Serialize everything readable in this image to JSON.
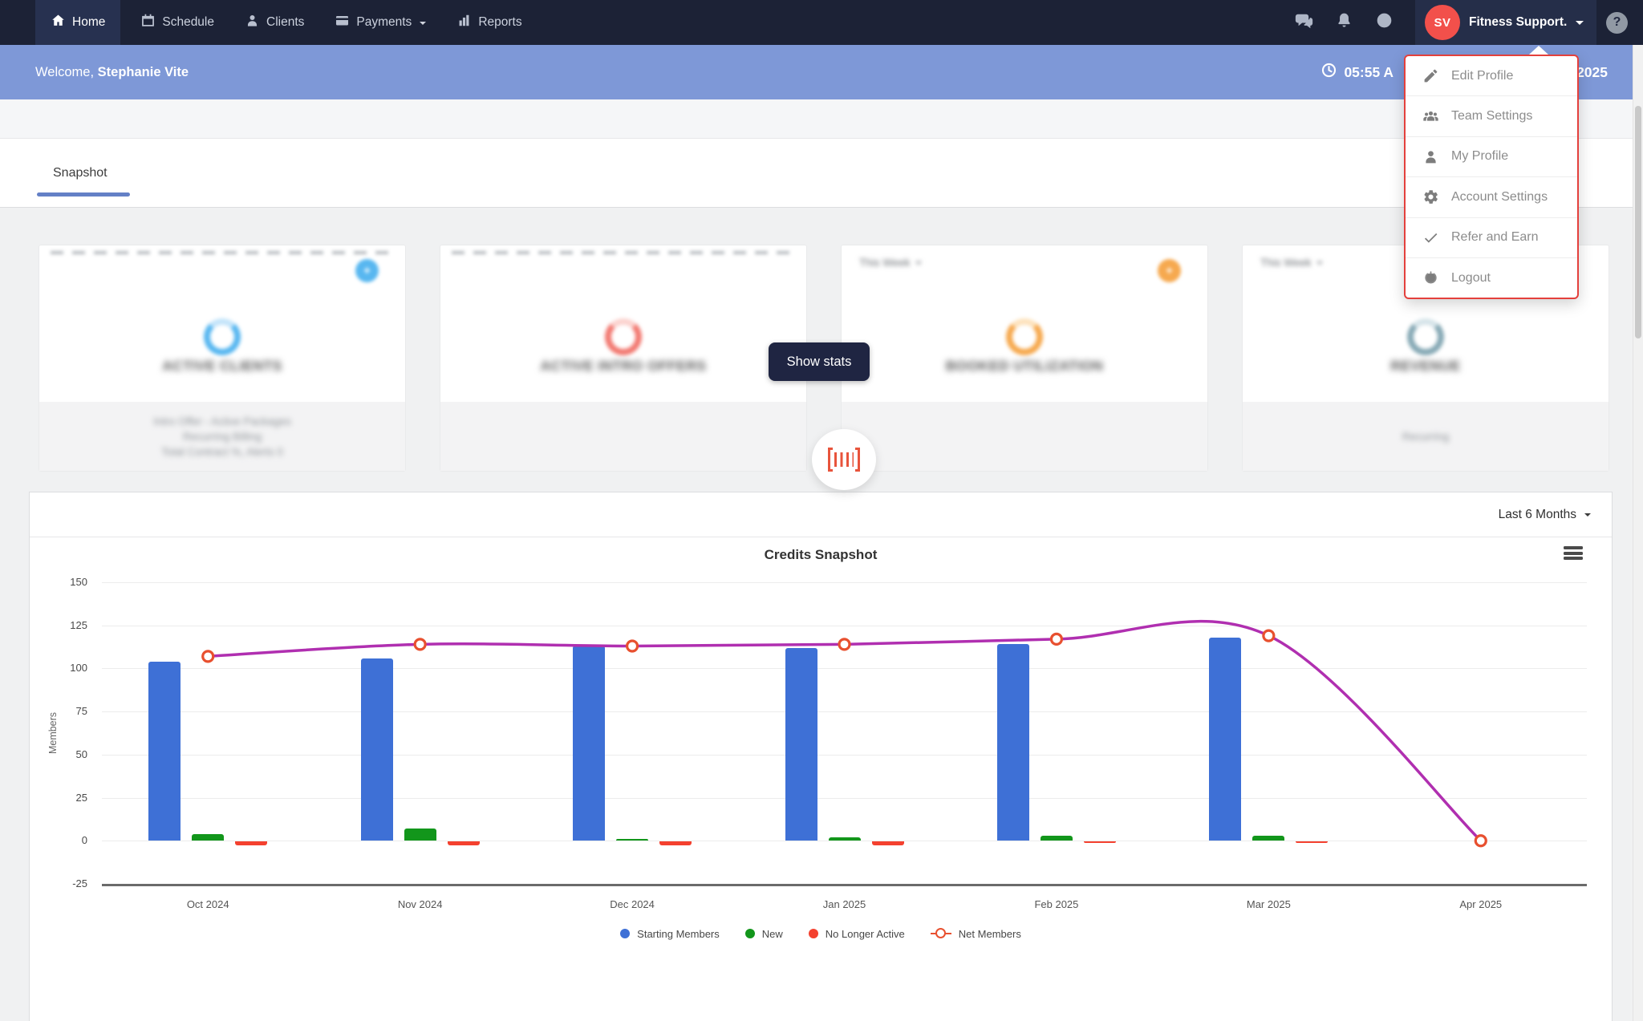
{
  "nav": {
    "items": [
      {
        "label": "Home",
        "icon": "home-icon",
        "active": true
      },
      {
        "label": "Schedule",
        "icon": "calendar-icon",
        "active": false
      },
      {
        "label": "Clients",
        "icon": "person-icon",
        "active": false
      },
      {
        "label": "Payments",
        "icon": "card-icon",
        "active": false,
        "caret": true
      },
      {
        "label": "Reports",
        "icon": "bar-chart-icon",
        "active": false
      }
    ],
    "user": {
      "initials": "SV",
      "name": "Fitness Support...",
      "help_label": "?"
    }
  },
  "welcome_bar": {
    "greeting_prefix": "Welcome, ",
    "user_name": "Stephanie Vite",
    "time_fragment": "05:55 A",
    "year_fragment": "2025"
  },
  "profile_menu": {
    "items": [
      {
        "label": "Edit Profile",
        "icon": "pencil-icon"
      },
      {
        "label": "Team Settings",
        "icon": "users-icon"
      },
      {
        "label": "My Profile",
        "icon": "user-icon"
      },
      {
        "label": "Account Settings",
        "icon": "gear-icon"
      },
      {
        "label": "Refer and Earn",
        "icon": "check-icon"
      },
      {
        "label": "Logout",
        "icon": "power-icon"
      }
    ],
    "border_color": "#e4403c"
  },
  "tabs": [
    {
      "label": "Snapshot",
      "active": true
    }
  ],
  "stat_cards": [
    {
      "title": "ACTIVE CLIENTS",
      "accent": "#58b7f0",
      "accent_light": "#c3e4fa",
      "dashes": true,
      "toggle": true,
      "footer_lines": [
        "Intro Offer - Active Packages",
        "Recurring Billing",
        "Total Contract %, Alerts 0"
      ],
      "blurred": true
    },
    {
      "title": "ACTIVE INTRO OFFERS",
      "accent": "#f27a72",
      "accent_light": "#fbd2ce",
      "dashes": true,
      "toggle": false,
      "footer_lines": [],
      "blurred": true
    },
    {
      "title": "BOOKED UTILIZATION",
      "accent": "#f6a94f",
      "accent_light": "#fde2bc",
      "dashes": false,
      "toggle": true,
      "header": "This Week",
      "footer_lines": [],
      "blurred": true
    },
    {
      "title": "REVENUE",
      "accent": "#88aab6",
      "accent_light": "#d6e4e9",
      "dashes": false,
      "toggle": false,
      "header": "This Week",
      "footer_lines": [
        "Recurring"
      ],
      "blurred": true
    }
  ],
  "overlay": {
    "show_stats_label": "Show stats",
    "scan_icon": "barcode-scan-icon"
  },
  "chart_panel": {
    "range_label": "Last 6 Months"
  },
  "chart_data": {
    "type": "bar+line",
    "title": "Credits Snapshot",
    "ylabel": "Members",
    "ylim": [
      -25,
      150
    ],
    "ytick_step": 25,
    "grid": true,
    "legend_position": "bottom",
    "categories": [
      "Oct 2024",
      "Nov 2024",
      "Dec 2024",
      "Jan 2025",
      "Feb 2025",
      "Mar 2025",
      "Apr 2025"
    ],
    "series": [
      {
        "name": "Starting Members",
        "type": "bar",
        "color": "#3e70d6",
        "values": [
          104,
          106,
          113,
          112,
          114,
          118,
          null
        ]
      },
      {
        "name": "New",
        "type": "bar",
        "color": "#12961b",
        "values": [
          4,
          7,
          1,
          2,
          3,
          3,
          null
        ]
      },
      {
        "name": "No Longer Active",
        "type": "bar",
        "color": "#f4412f",
        "values": [
          -2,
          -2,
          -2,
          -2,
          -1,
          -1,
          null
        ]
      },
      {
        "name": "Net Members",
        "type": "line",
        "color": "#b02fb0",
        "marker_color": "#e8502f",
        "values": [
          107,
          114,
          113,
          114,
          117,
          119,
          0
        ]
      }
    ]
  }
}
